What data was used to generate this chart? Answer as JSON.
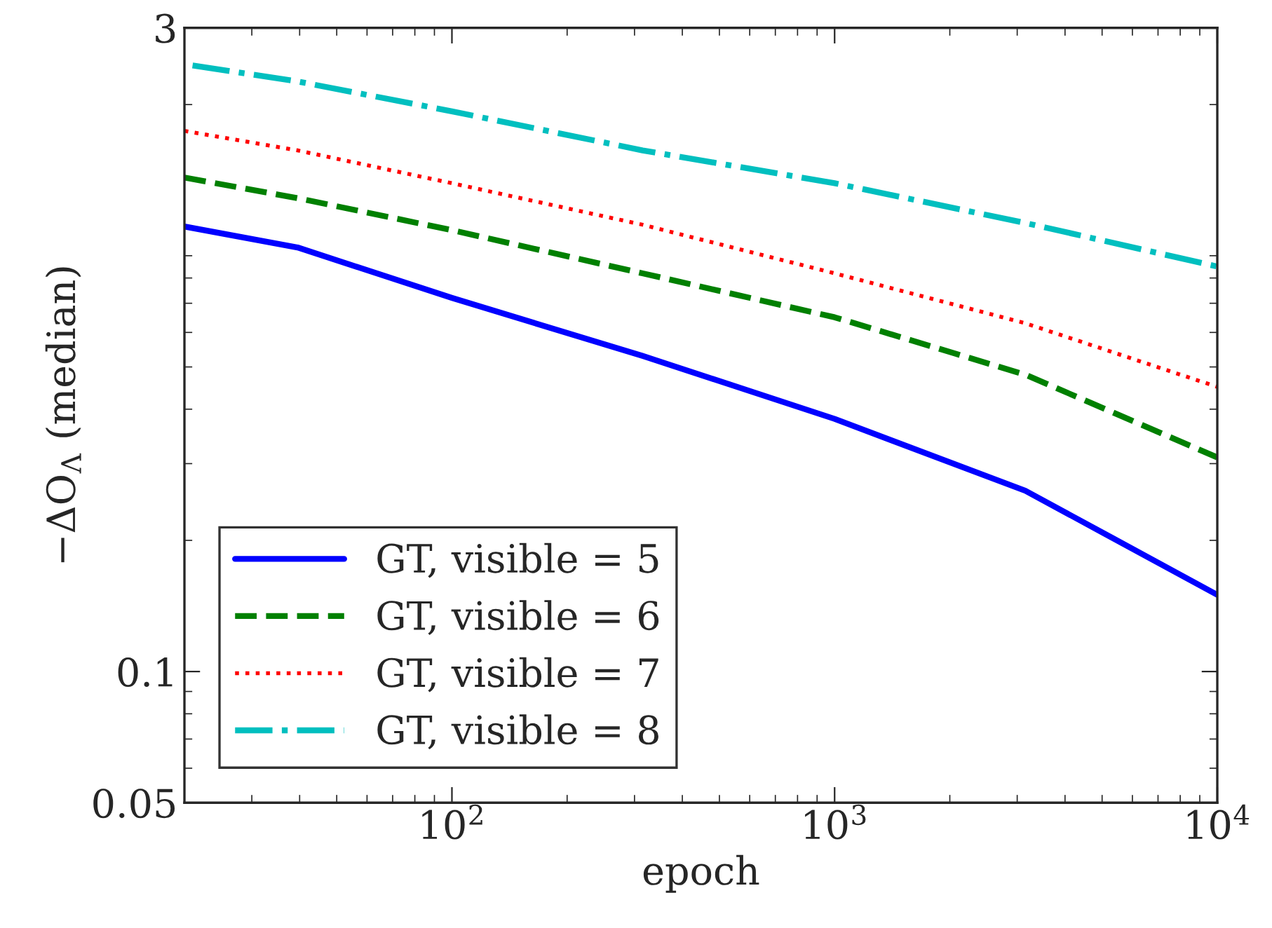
{
  "chart_data": {
    "type": "line",
    "xlabel": "epoch",
    "ylabel": "−ΔO$_{Λ}$ (median)",
    "log": "xy",
    "xlim": [
      20,
      10000
    ],
    "ylim": [
      0.05,
      3
    ],
    "xticks": [
      {
        "value": 100,
        "label": "10$^{2}$"
      },
      {
        "value": 1000,
        "label": "10$^{3}$"
      },
      {
        "value": 10000,
        "label": "10$^{4}$"
      }
    ],
    "yticks": [
      0.05,
      0.1,
      3
    ],
    "grid": false,
    "legend": "bottom left",
    "series": [
      {
        "name": "GT, visible = 5",
        "color": "#0000ff",
        "line_style": "solid",
        "x": [
          20,
          39.5,
          100,
          315,
          1000,
          3150,
          10000
        ],
        "values": [
          1.05,
          0.94,
          0.72,
          0.53,
          0.38,
          0.26,
          0.15
        ]
      },
      {
        "name": "GT, visible = 6",
        "color": "#008000",
        "line_style": "dashed",
        "x": [
          20,
          39.5,
          100,
          315,
          1000,
          3150,
          10000
        ],
        "values": [
          1.36,
          1.22,
          1.03,
          0.82,
          0.65,
          0.48,
          0.31
        ]
      },
      {
        "name": "GT, visible = 7",
        "color": "#ff0000",
        "line_style": "dotted",
        "x": [
          20,
          39.5,
          100,
          315,
          1000,
          3150,
          10000
        ],
        "values": [
          1.74,
          1.57,
          1.32,
          1.06,
          0.82,
          0.63,
          0.45
        ]
      },
      {
        "name": "GT, visible = 8",
        "color": "#00bfbf",
        "line_style": "dashdot",
        "x": [
          21,
          39.5,
          100,
          315,
          1000,
          3150,
          10000
        ],
        "values": [
          2.46,
          2.26,
          1.93,
          1.57,
          1.32,
          1.07,
          0.85
        ]
      }
    ]
  }
}
